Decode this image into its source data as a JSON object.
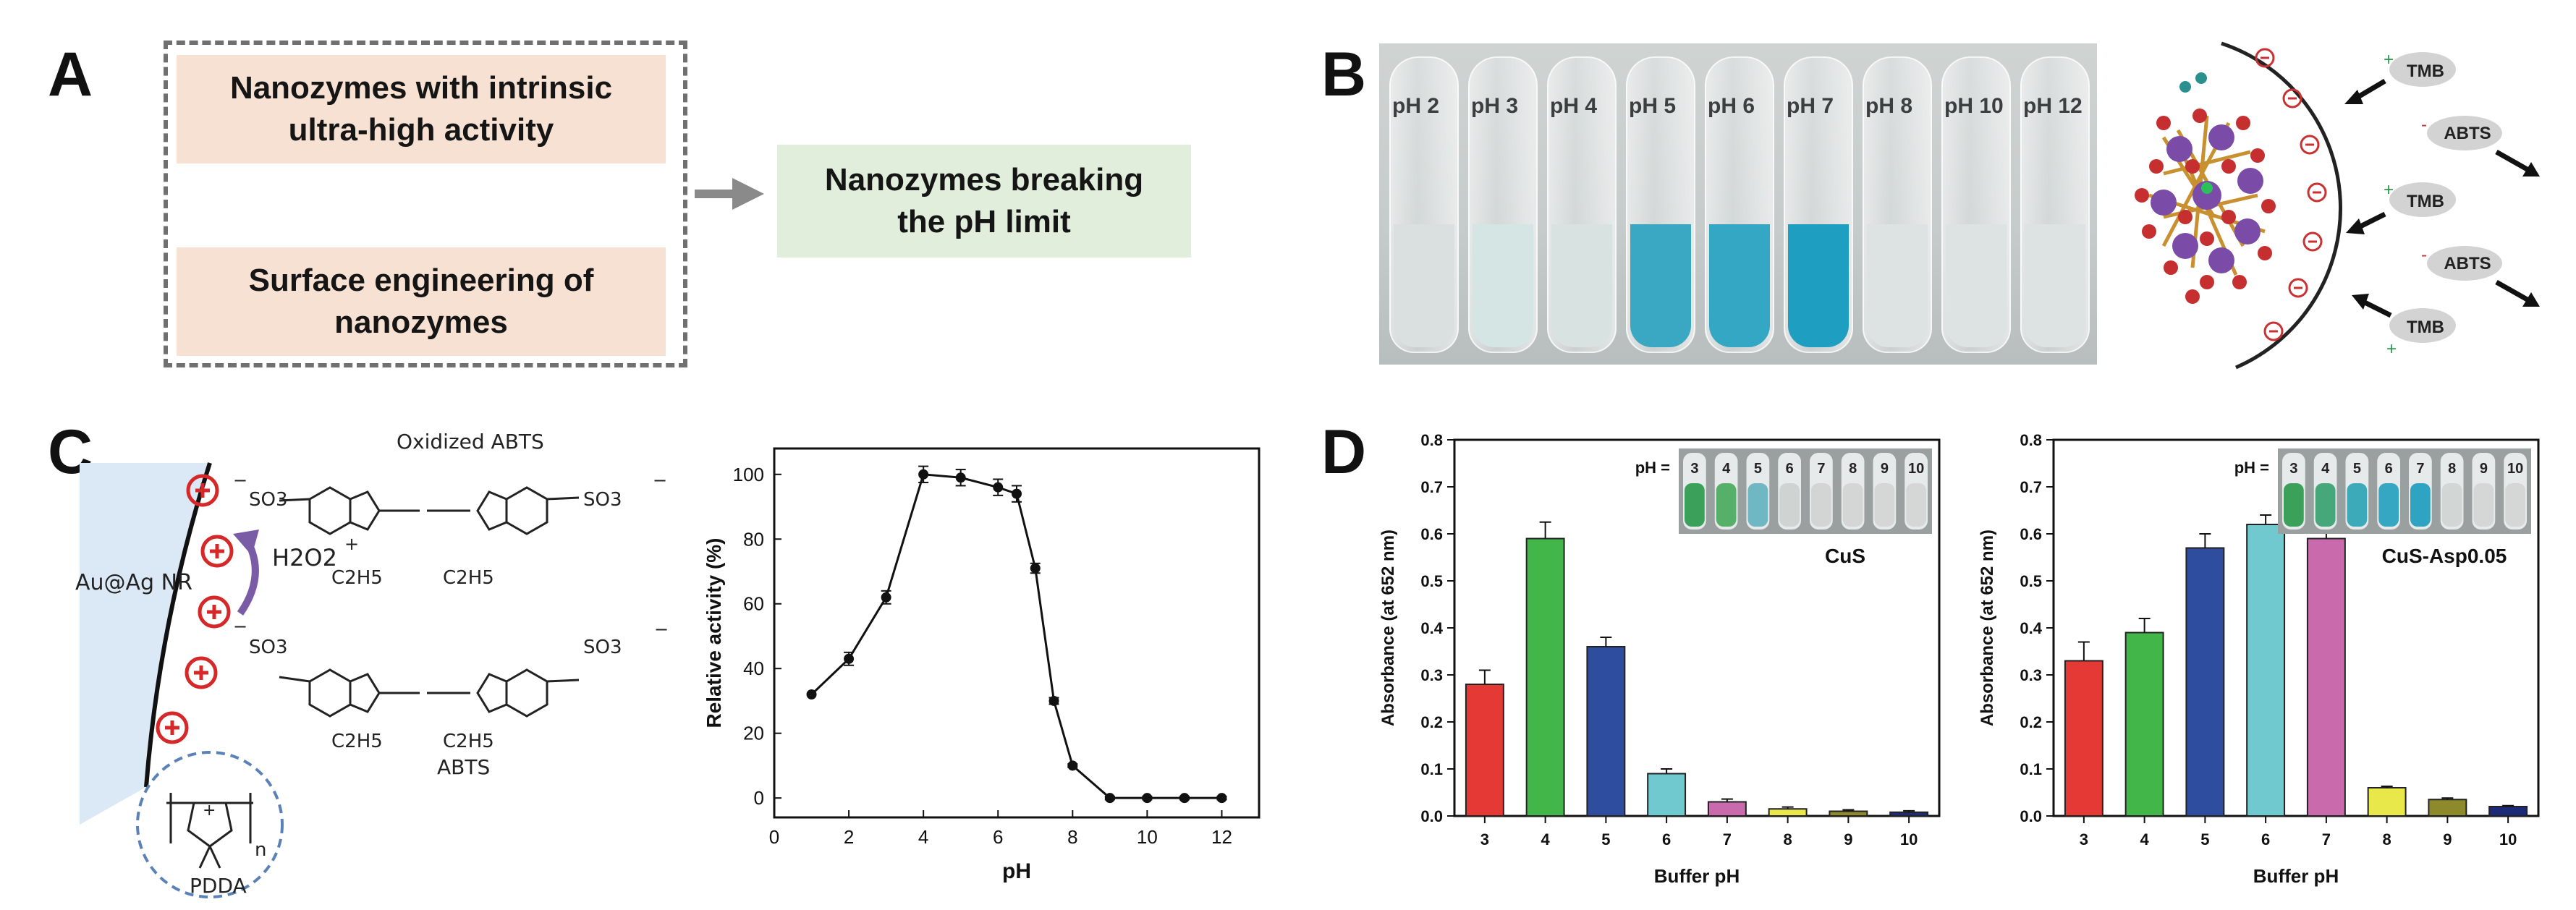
{
  "panels": {
    "a": "A",
    "b": "B",
    "c": "C",
    "d": "D"
  },
  "panel_a": {
    "card_top": "Nanozymes with intrinsic\nultra-high activity",
    "card_bottom": "Surface engineering of\nnanozymes",
    "result": "Nanozymes breaking\nthe pH limit"
  },
  "panel_b": {
    "tube_labels": [
      "pH 2",
      "pH 3",
      "pH 4",
      "pH 5",
      "pH 6",
      "pH 7",
      "pH 8",
      "pH 10",
      "pH 12"
    ],
    "tube_colors": [
      "#d9e0df",
      "#d4e5e4",
      "#d8e2e1",
      "#3aa8c2",
      "#34a7c4",
      "#1e9ec0",
      "#dde3e2",
      "#dde3e2",
      "#dde3e2"
    ],
    "substrates": [
      "TMB",
      "ABTS",
      "TMB",
      "ABTS",
      "TMB"
    ],
    "substrate_signs": [
      "+",
      "-",
      "+",
      "-",
      "+"
    ]
  },
  "panel_c": {
    "nr_label": "Au@Ag NR",
    "oxidant": "H2O2",
    "oxidized_label": "Oxidized ABTS",
    "reduced_label": "ABTS",
    "polymer_label": "PDDA",
    "substituent_so3": "SO3",
    "substituent_ethyl": "C2H5",
    "charge_plus": "+",
    "charge_minus": "−",
    "subscript_n": "n"
  },
  "chart_c": {
    "type": "line",
    "ylabel": "Relative activity (%)",
    "xlabel": "pH",
    "x_ticks": [
      "0",
      "2",
      "4",
      "6",
      "8",
      "10",
      "12"
    ],
    "y_ticks": [
      "0",
      "20",
      "40",
      "60",
      "80",
      "100"
    ],
    "xlim": [
      0,
      13
    ],
    "ylim": [
      -6,
      108
    ]
  },
  "chart_data": [
    {
      "type": "line",
      "title": "",
      "xlabel": "pH",
      "ylabel": "Relative activity (%)",
      "xlim": [
        0,
        13
      ],
      "ylim": [
        -6,
        108
      ],
      "x": [
        1,
        2,
        3,
        4,
        5,
        6,
        6.5,
        7,
        7.5,
        8,
        9,
        10,
        11,
        12
      ],
      "y": [
        32,
        43,
        62,
        100,
        99,
        96,
        94,
        71,
        30,
        10,
        0,
        0,
        0,
        0
      ],
      "error": [
        0,
        2,
        2,
        2.5,
        2.5,
        2.5,
        2.5,
        1.5,
        1,
        0.5,
        0.5,
        0.5,
        0.5,
        0.5
      ]
    },
    {
      "type": "bar",
      "title": "CuS",
      "xlabel": "Buffer pH",
      "ylabel": "Absorbance (at 652 nm)",
      "ylim": [
        0,
        0.8
      ],
      "categories": [
        "3",
        "4",
        "5",
        "6",
        "7",
        "8",
        "9",
        "10"
      ],
      "values": [
        0.28,
        0.59,
        0.36,
        0.09,
        0.03,
        0.015,
        0.01,
        0.008
      ],
      "error": [
        0.03,
        0.035,
        0.02,
        0.01,
        0.006,
        0.004,
        0.003,
        0.003
      ],
      "colors": [
        "#e53935",
        "#43b649",
        "#2f4d9e",
        "#6fc9cf",
        "#c86aac",
        "#e8e84a",
        "#8c8a2a",
        "#1d2a78"
      ]
    },
    {
      "type": "bar",
      "title": "CuS-Asp0.05",
      "xlabel": "Buffer pH",
      "ylabel": "Absorbance (at 652 nm)",
      "ylim": [
        0,
        0.8
      ],
      "categories": [
        "3",
        "4",
        "5",
        "6",
        "7",
        "8",
        "9",
        "10"
      ],
      "values": [
        0.33,
        0.39,
        0.57,
        0.62,
        0.59,
        0.06,
        0.035,
        0.02
      ],
      "error": [
        0.04,
        0.03,
        0.03,
        0.02,
        0.03,
        0.003,
        0.003,
        0.002
      ],
      "colors": [
        "#e53935",
        "#43b649",
        "#2f4d9e",
        "#6fc9cf",
        "#c86aac",
        "#e8e84a",
        "#8c8a2a",
        "#1d2a78"
      ]
    }
  ],
  "panel_d": {
    "inset_prefix": "pH =",
    "inset_labels": [
      "3",
      "4",
      "5",
      "6",
      "7",
      "8",
      "9",
      "10"
    ],
    "left_inset_tints": [
      "#3aa05a",
      "#57b06a",
      "#6fb7c2",
      "#cfd3d2",
      "#d2d5d4",
      "#d3d6d5",
      "#d4d7d6",
      "#d4d7d6"
    ],
    "right_inset_tints": [
      "#3aa05a",
      "#46a87a",
      "#3caab8",
      "#35a7c3",
      "#2ea3c2",
      "#d2d6d5",
      "#d4d7d6",
      "#d4d7d6"
    ],
    "y_ticks": [
      "0.0",
      "0.1",
      "0.2",
      "0.3",
      "0.4",
      "0.5",
      "0.6",
      "0.7",
      "0.8"
    ]
  }
}
